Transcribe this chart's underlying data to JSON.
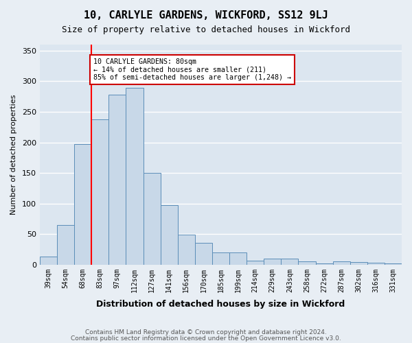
{
  "title": "10, CARLYLE GARDENS, WICKFORD, SS12 9LJ",
  "subtitle": "Size of property relative to detached houses in Wickford",
  "xlabel": "Distribution of detached houses by size in Wickford",
  "ylabel": "Number of detached properties",
  "footer_line1": "Contains HM Land Registry data © Crown copyright and database right 2024.",
  "footer_line2": "Contains public sector information licensed under the Open Government Licence v3.0.",
  "categories": [
    "39sqm",
    "54sqm",
    "68sqm",
    "83sqm",
    "97sqm",
    "112sqm",
    "127sqm",
    "141sqm",
    "156sqm",
    "170sqm",
    "185sqm",
    "199sqm",
    "214sqm",
    "229sqm",
    "243sqm",
    "258sqm",
    "272sqm",
    "287sqm",
    "302sqm",
    "316sqm",
    "331sqm"
  ],
  "values": [
    13,
    65,
    197,
    238,
    278,
    289,
    150,
    97,
    49,
    36,
    20,
    20,
    6,
    10,
    10,
    5,
    2,
    5,
    4,
    3,
    2
  ],
  "bar_color": "#c8d8e8",
  "bar_edge_color": "#5b8db8",
  "bg_color": "#e8eef4",
  "plot_bg_color": "#dce6f0",
  "grid_color": "#ffffff",
  "annotation_text": "10 CARLYLE GARDENS: 80sqm\n← 14% of detached houses are smaller (211)\n85% of semi-detached houses are larger (1,248) →",
  "annotation_box_color": "#cc0000",
  "red_line_x": 2.5,
  "ylim": [
    0,
    360
  ],
  "yticks": [
    0,
    50,
    100,
    150,
    200,
    250,
    300,
    350
  ]
}
